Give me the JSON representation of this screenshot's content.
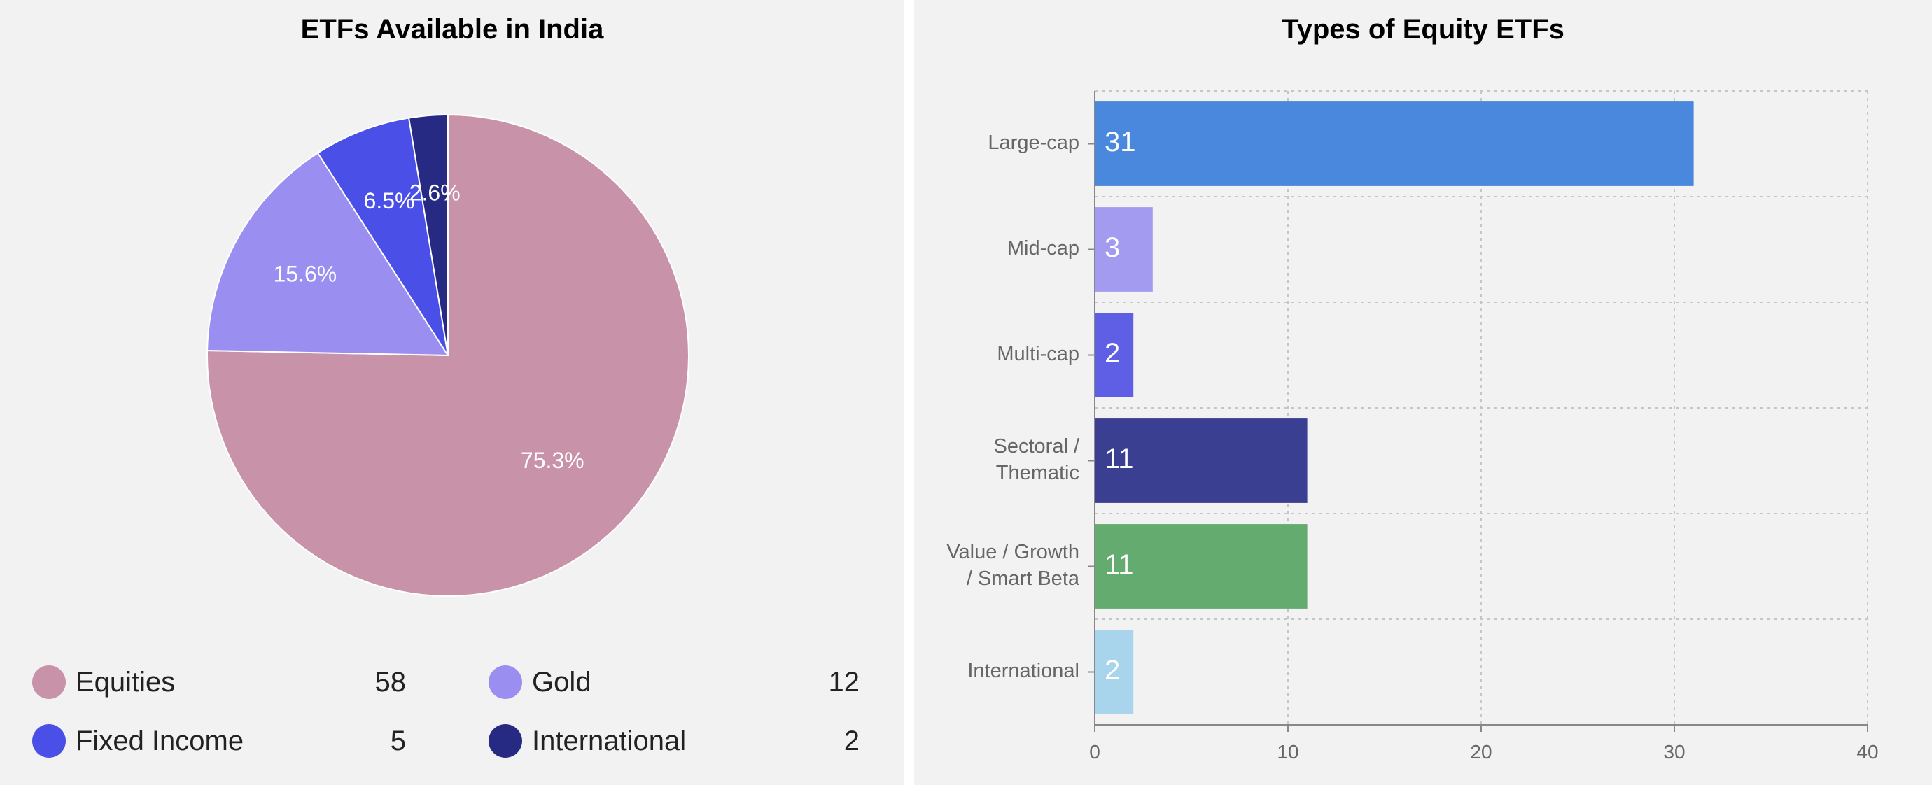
{
  "chart_data": [
    {
      "type": "pie",
      "title": "ETFs Available in India",
      "slices": [
        {
          "label": "Equities",
          "value": 58,
          "percent_label": "75.3%",
          "color": "#c892a8"
        },
        {
          "label": "Gold",
          "value": 12,
          "percent_label": "15.6%",
          "color": "#9a8ff0"
        },
        {
          "label": "Fixed Income",
          "value": 5,
          "percent_label": "6.5%",
          "color": "#4a4fe8"
        },
        {
          "label": "International",
          "value": 2,
          "percent_label": "2.6%",
          "color": "#262a82"
        }
      ],
      "legend_position": "bottom"
    },
    {
      "type": "bar",
      "orientation": "horizontal",
      "title": "Types of Equity ETFs",
      "categories": [
        "Large-cap",
        "Mid-cap",
        "Multi-cap",
        "Sectoral / Thematic",
        "Value / Growth / Smart Beta",
        "International"
      ],
      "category_lines": [
        [
          "Large-cap"
        ],
        [
          "Mid-cap"
        ],
        [
          "Multi-cap"
        ],
        [
          "Sectoral /",
          "Thematic"
        ],
        [
          "Value / Growth",
          "/ Smart Beta"
        ],
        [
          "International"
        ]
      ],
      "values": [
        31,
        3,
        2,
        11,
        11,
        2
      ],
      "colors": [
        "#4a88de",
        "#a39bf0",
        "#5f5fe6",
        "#3b3f92",
        "#63ab6e",
        "#a8d4ec"
      ],
      "xlim": [
        0,
        40
      ],
      "xticks": [
        0,
        10,
        20,
        30,
        40
      ],
      "grid": true
    }
  ]
}
